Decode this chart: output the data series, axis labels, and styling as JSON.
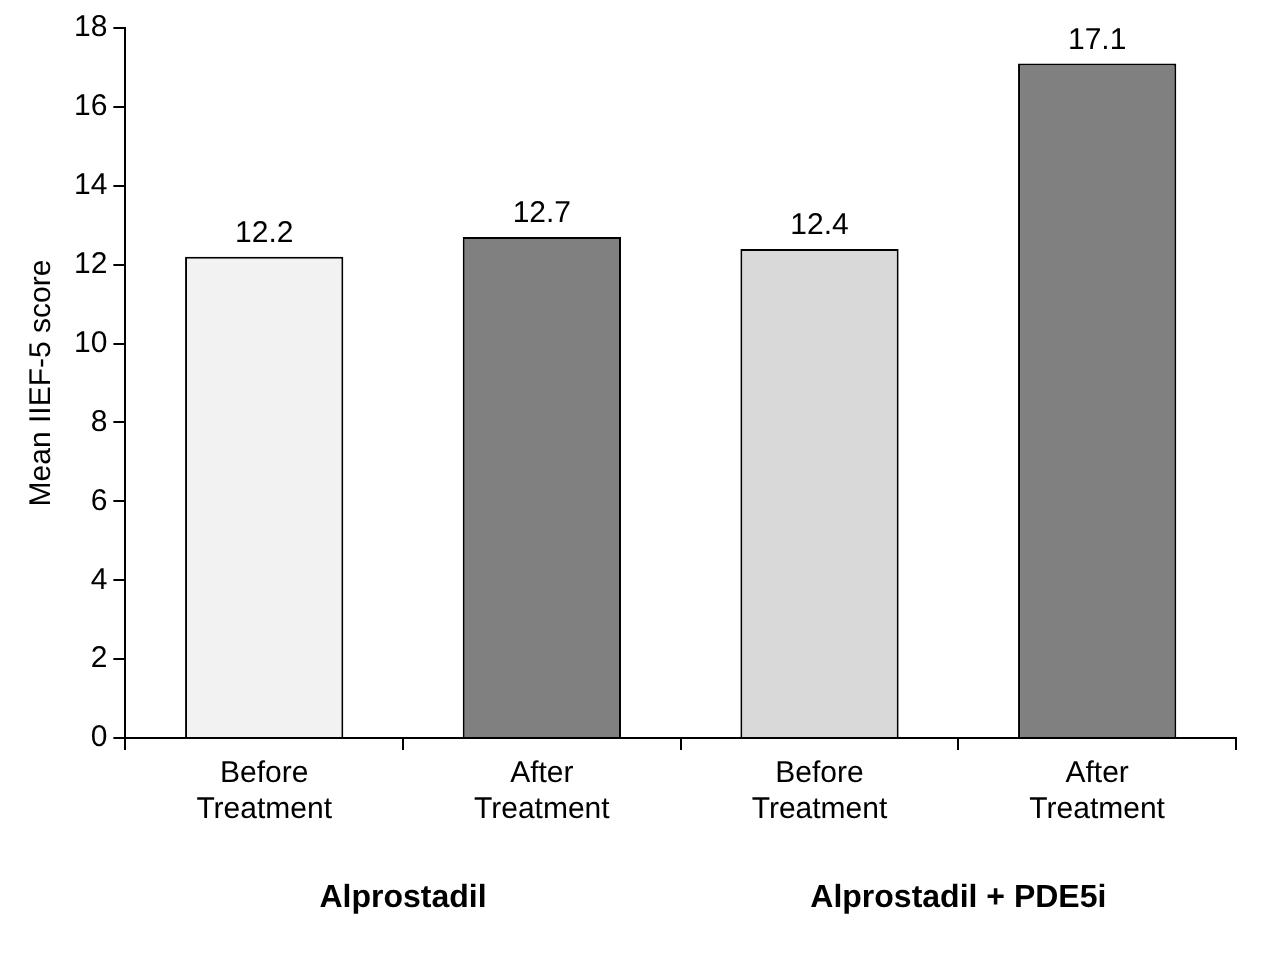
{
  "chart_data": {
    "type": "bar",
    "ylabel": "Mean IIEF-5 score",
    "categories": [
      "Before Treatment",
      "After Treatment",
      "Before Treatment",
      "After Treatment"
    ],
    "values": [
      12.2,
      12.7,
      12.4,
      17.1
    ],
    "colors": [
      "#f2f2f2",
      "#808080",
      "#d9d9d9",
      "#808080"
    ],
    "ylim": [
      0,
      18
    ],
    "yticks": [
      0,
      2,
      4,
      6,
      8,
      10,
      12,
      14,
      16,
      18
    ],
    "grid": false,
    "legend": false,
    "data_labels": true,
    "annotations": [
      "Alprostadil",
      "Alprostadil + PDE5i"
    ]
  }
}
